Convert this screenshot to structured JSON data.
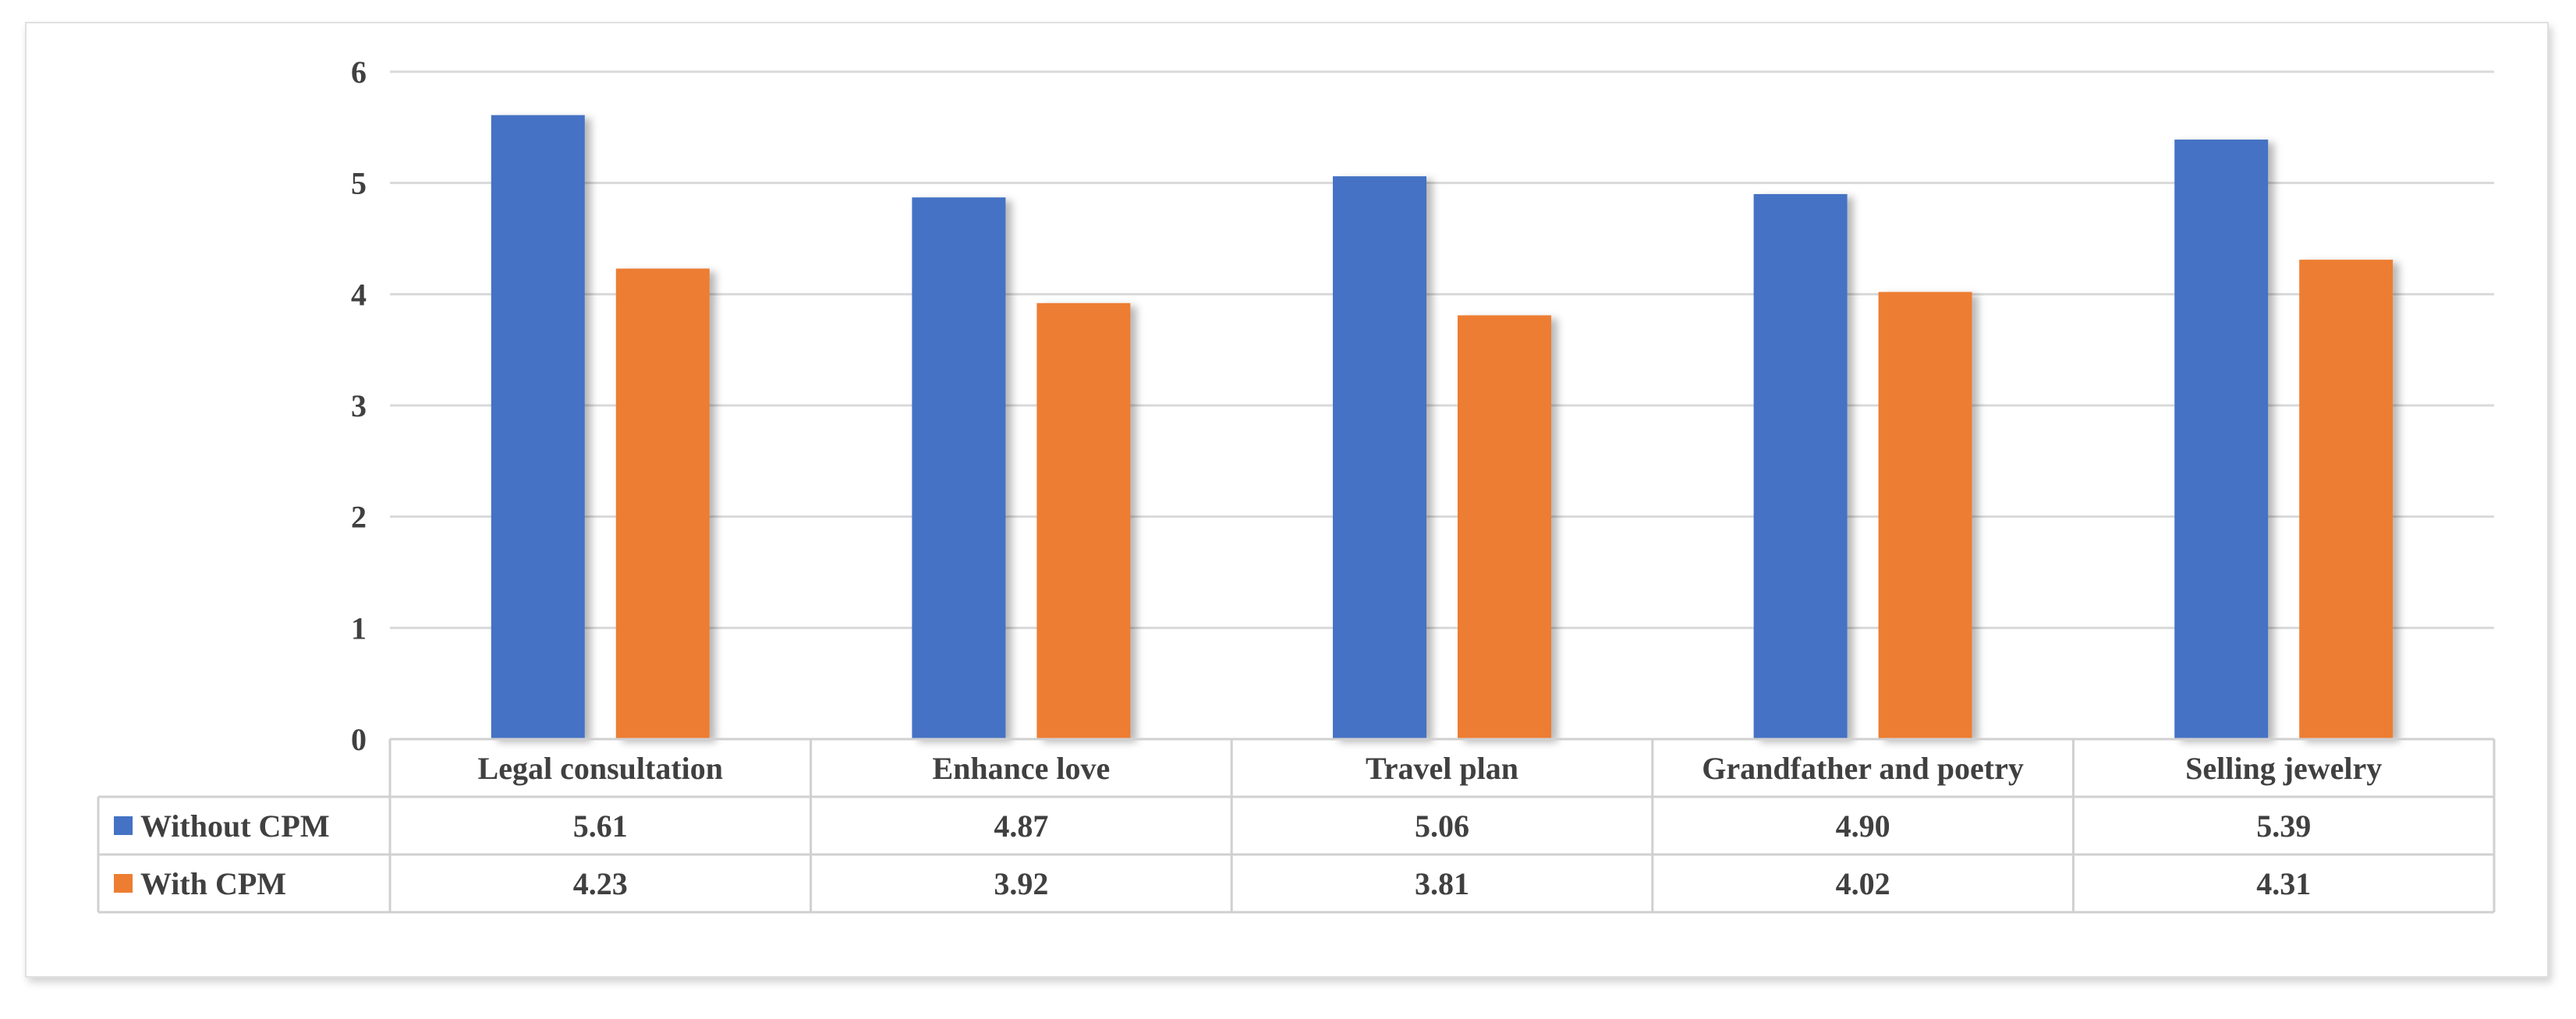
{
  "chart_data": {
    "type": "bar",
    "categories": [
      "Legal consultation",
      "Enhance love",
      "Travel plan",
      "Grandfather and poetry",
      "Selling jewelry"
    ],
    "series": [
      {
        "name": "Without CPM",
        "color": "#4472C4",
        "values": [
          5.61,
          4.87,
          5.06,
          4.9,
          5.39
        ],
        "labels": [
          "5.61",
          "4.87",
          "5.06",
          "4.90",
          "5.39"
        ]
      },
      {
        "name": "With CPM",
        "color": "#ED7D31",
        "values": [
          4.23,
          3.92,
          3.81,
          4.02,
          4.31
        ],
        "labels": [
          "4.23",
          "3.92",
          "3.81",
          "4.02",
          "4.31"
        ]
      }
    ],
    "ylim": [
      0,
      6
    ],
    "yticks": [
      0,
      1,
      2,
      3,
      4,
      5,
      6
    ],
    "title": "",
    "xlabel": "",
    "ylabel": "",
    "grid": true,
    "legend": "data-table"
  }
}
